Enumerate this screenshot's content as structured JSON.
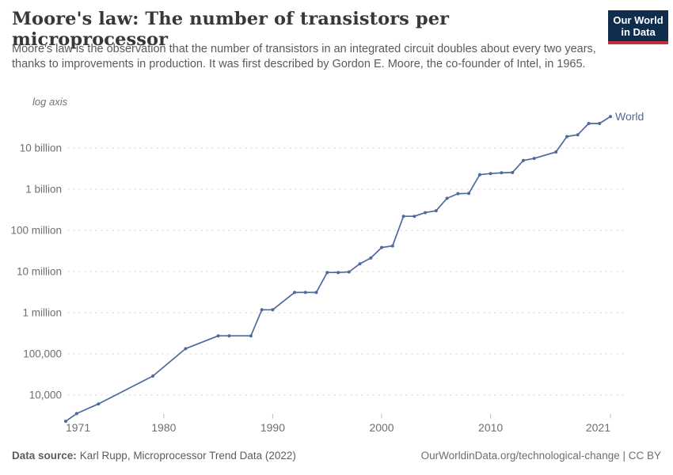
{
  "header": {
    "title": "Moore's law: The number of transistors per microprocessor",
    "subtitle": "Moore's law is the observation that the number of transistors in an integrated circuit doubles about every two years, thanks to improvements in production. It was first described by Gordon E. Moore, the co-founder of Intel, in 1965.",
    "logo": {
      "line1": "Our World",
      "line2": "in Data",
      "navy_color": "#0f2e4d",
      "red_color": "#c0333b"
    }
  },
  "chart_data": {
    "type": "line",
    "title": "Moore's law: The number of transistors per microprocessor",
    "log_axis_label": "log axis",
    "y_scale": "log",
    "grid": true,
    "legend_position": "end-of-line-label",
    "x_domain": [
      1971,
      2021
    ],
    "y_gridline_range": [
      10000,
      10000000000
    ],
    "x_ticks": [
      1971,
      1980,
      1990,
      2000,
      2010,
      2021
    ],
    "y_ticks": [
      {
        "value": 10000,
        "label": "10,000"
      },
      {
        "value": 100000,
        "label": "100,000"
      },
      {
        "value": 1000000,
        "label": "1 million"
      },
      {
        "value": 10000000,
        "label": "10 million"
      },
      {
        "value": 100000000,
        "label": "100 million"
      },
      {
        "value": 1000000000,
        "label": "1 billion"
      },
      {
        "value": 10000000000,
        "label": "10 billion"
      }
    ],
    "series": [
      {
        "name": "World",
        "color": "#4c6a9c",
        "points": [
          [
            1971,
            2308
          ],
          [
            1972,
            3554
          ],
          [
            1974,
            6097
          ],
          [
            1979,
            29000
          ],
          [
            1982,
            134000
          ],
          [
            1985,
            275000
          ],
          [
            1986,
            275000
          ],
          [
            1988,
            275000
          ],
          [
            1989,
            1180000
          ],
          [
            1990,
            1180000
          ],
          [
            1992,
            3100000
          ],
          [
            1993,
            3100000
          ],
          [
            1994,
            3100000
          ],
          [
            1995,
            9500000
          ],
          [
            1996,
            9500000
          ],
          [
            1997,
            9800000
          ],
          [
            1998,
            15400000
          ],
          [
            1999,
            21300000
          ],
          [
            2000,
            38500000
          ],
          [
            2001,
            42000000
          ],
          [
            2002,
            220000000
          ],
          [
            2003,
            220000000
          ],
          [
            2004,
            270000000
          ],
          [
            2005,
            300000000
          ],
          [
            2006,
            600000000
          ],
          [
            2007,
            780000000
          ],
          [
            2008,
            790000000
          ],
          [
            2009,
            2250000000
          ],
          [
            2010,
            2400000000
          ],
          [
            2011,
            2500000000
          ],
          [
            2012,
            2550000000
          ],
          [
            2013,
            5000000000
          ],
          [
            2014,
            5600000000
          ],
          [
            2016,
            8000000000
          ],
          [
            2017,
            19000000000
          ],
          [
            2018,
            21000000000
          ],
          [
            2019,
            39500000000
          ],
          [
            2020,
            39500000000
          ],
          [
            2021,
            58200000000
          ]
        ]
      }
    ]
  },
  "footer": {
    "source_label": "Data source:",
    "source_value": "Karl Rupp, Microprocessor Trend Data (2022)",
    "credit": "OurWorldinData.org/technological-change | CC BY"
  }
}
